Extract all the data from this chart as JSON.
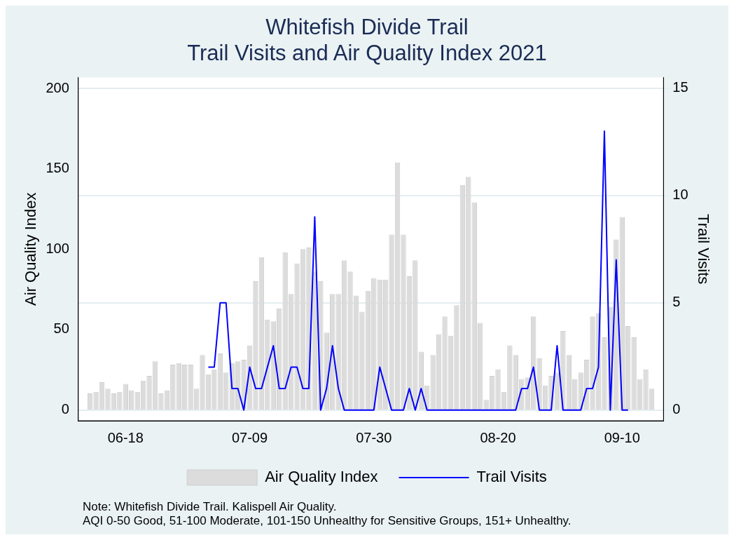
{
  "chart_data": {
    "type": "bar",
    "title": "Whitefish Divide Trail\nTrail Visits and Air Quality Index 2021",
    "ylabel": "Air Quality Index",
    "y2label": "Trail Visits",
    "x": [
      "--06-12",
      "--06-13",
      "--06-14",
      "--06-15",
      "--06-16",
      "--06-17",
      "--06-18",
      "--06-19",
      "--06-20",
      "--06-21",
      "--06-22",
      "--06-23",
      "--06-24",
      "--06-25",
      "--06-26",
      "--06-27",
      "--06-28",
      "--06-29",
      "--06-30",
      "--07-01",
      "--07-02",
      "--07-03",
      "--07-04",
      "--07-05",
      "--07-06",
      "--07-07",
      "--07-08",
      "--07-09",
      "--07-10",
      "--07-11",
      "--07-12",
      "--07-13",
      "--07-14",
      "--07-15",
      "--07-16",
      "--07-17",
      "--07-18",
      "--07-19",
      "--07-20",
      "--07-21",
      "--07-22",
      "--07-23",
      "--07-24",
      "--07-25",
      "--07-26",
      "--07-27",
      "--07-28",
      "--07-29",
      "--07-30",
      "--07-31",
      "--08-01",
      "--08-02",
      "--08-03",
      "--08-04",
      "--08-05",
      "--08-06",
      "--08-07",
      "--08-08",
      "--08-09",
      "--08-10",
      "--08-11",
      "--08-12",
      "--08-13",
      "--08-14",
      "--08-15",
      "--08-16",
      "--08-17",
      "--08-18",
      "--08-19",
      "--08-20",
      "--08-21",
      "--08-22",
      "--08-23",
      "--08-24",
      "--08-25",
      "--08-26",
      "--08-27",
      "--08-28",
      "--08-29",
      "--08-30",
      "--08-31",
      "--09-01",
      "--09-02",
      "--09-03",
      "--09-04",
      "--09-05",
      "--09-06",
      "--09-07",
      "--09-08",
      "--09-09",
      "--09-10",
      "--09-11",
      "--09-12",
      "--09-13",
      "--09-14",
      "--09-15"
    ],
    "series": [
      {
        "name": "Air Quality Index",
        "color": "#dcdcdc",
        "values": [
          10,
          11,
          17,
          13,
          10,
          11,
          16,
          12,
          11,
          18,
          21,
          30,
          10,
          12,
          28,
          29,
          28,
          28,
          13,
          34,
          22,
          25,
          35,
          23,
          29,
          30,
          31,
          40,
          80,
          95,
          56,
          55,
          63,
          98,
          72,
          91,
          100,
          101,
          86,
          80,
          48,
          72,
          72,
          93,
          86,
          71,
          61,
          74,
          82,
          81,
          81,
          109,
          154,
          109,
          83,
          93,
          36,
          15,
          34,
          47,
          58,
          46,
          65,
          140,
          145,
          129,
          54,
          6,
          21,
          25,
          11,
          40,
          34,
          19,
          20,
          58,
          32,
          15,
          21,
          23,
          49,
          34,
          19,
          23,
          31,
          58,
          60,
          45,
          64,
          106,
          120,
          52,
          45,
          19,
          25,
          13
        ]
      },
      {
        "name": "Trail Visits",
        "type": "line",
        "axis": "y2",
        "color": "#0000ff",
        "values": [
          null,
          null,
          null,
          null,
          null,
          null,
          null,
          null,
          null,
          null,
          null,
          null,
          null,
          null,
          null,
          null,
          null,
          null,
          null,
          null,
          2,
          2,
          5,
          5,
          1,
          1,
          0,
          2,
          1,
          1,
          2,
          3,
          1,
          1,
          2,
          2,
          1,
          1,
          9,
          0,
          1,
          3,
          1,
          0,
          0,
          0,
          0,
          0,
          0,
          2,
          1,
          0,
          0,
          0,
          1,
          0,
          1,
          0,
          0,
          0,
          0,
          0,
          0,
          0,
          0,
          0,
          0,
          0,
          0,
          0,
          0,
          0,
          0,
          1,
          1,
          2,
          0,
          0,
          0,
          3,
          0,
          0,
          0,
          0,
          1,
          1,
          2,
          13,
          0,
          7,
          0,
          0,
          null,
          null,
          null,
          null
        ]
      }
    ],
    "xlim": [
      "--06-10",
      "--09-17"
    ],
    "xticks": [
      {
        "value": "--06-18",
        "label": "06-18"
      },
      {
        "value": "--07-09",
        "label": "07-09"
      },
      {
        "value": "--07-30",
        "label": "07-30"
      },
      {
        "value": "--08-20",
        "label": "08-20"
      },
      {
        "value": "--09-10",
        "label": "09-10"
      }
    ],
    "ylim": [
      -7,
      207
    ],
    "yticks": [
      0,
      50,
      100,
      150,
      200
    ],
    "y2lim": [
      -0.5,
      15.5
    ],
    "y2ticks": [
      0,
      5,
      10,
      15
    ],
    "grid": "y2",
    "legend": "bottom",
    "marker": "none",
    "line_style": "solid",
    "annotations": [
      "Note: Whitefish Divide Trail. Kalispell Air Quality.",
      "AQI 0-50 Good, 51-100 Moderate, 101-150 Unhealthy for Sensitive Groups, 151+ Unhealthy."
    ]
  }
}
